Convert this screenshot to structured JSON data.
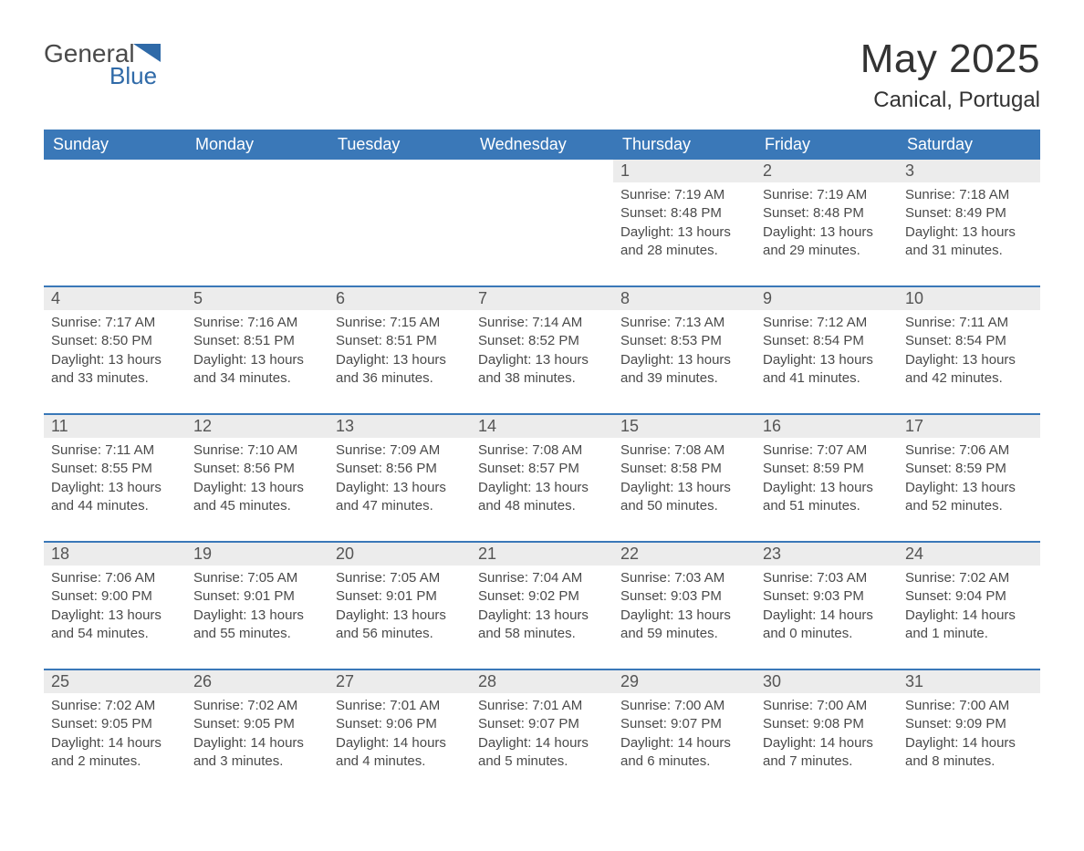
{
  "logo": {
    "text1": "General",
    "text2": "Blue"
  },
  "header": {
    "title": "May 2025",
    "location": "Canical, Portugal"
  },
  "colors": {
    "header_bg": "#3a78b8",
    "header_text": "#ffffff",
    "day_num_bg": "#ececec",
    "day_num_text": "#555555",
    "body_text": "#4a4a4a",
    "border": "#3a78b8",
    "logo_gray": "#4a4a4a",
    "logo_blue": "#2f6aa8"
  },
  "weekdays": [
    "Sunday",
    "Monday",
    "Tuesday",
    "Wednesday",
    "Thursday",
    "Friday",
    "Saturday"
  ],
  "weeks": [
    [
      {
        "empty": true
      },
      {
        "empty": true
      },
      {
        "empty": true
      },
      {
        "empty": true
      },
      {
        "day": "1",
        "sunrise": "Sunrise: 7:19 AM",
        "sunset": "Sunset: 8:48 PM",
        "daylight1": "Daylight: 13 hours",
        "daylight2": "and 28 minutes."
      },
      {
        "day": "2",
        "sunrise": "Sunrise: 7:19 AM",
        "sunset": "Sunset: 8:48 PM",
        "daylight1": "Daylight: 13 hours",
        "daylight2": "and 29 minutes."
      },
      {
        "day": "3",
        "sunrise": "Sunrise: 7:18 AM",
        "sunset": "Sunset: 8:49 PM",
        "daylight1": "Daylight: 13 hours",
        "daylight2": "and 31 minutes."
      }
    ],
    [
      {
        "day": "4",
        "sunrise": "Sunrise: 7:17 AM",
        "sunset": "Sunset: 8:50 PM",
        "daylight1": "Daylight: 13 hours",
        "daylight2": "and 33 minutes."
      },
      {
        "day": "5",
        "sunrise": "Sunrise: 7:16 AM",
        "sunset": "Sunset: 8:51 PM",
        "daylight1": "Daylight: 13 hours",
        "daylight2": "and 34 minutes."
      },
      {
        "day": "6",
        "sunrise": "Sunrise: 7:15 AM",
        "sunset": "Sunset: 8:51 PM",
        "daylight1": "Daylight: 13 hours",
        "daylight2": "and 36 minutes."
      },
      {
        "day": "7",
        "sunrise": "Sunrise: 7:14 AM",
        "sunset": "Sunset: 8:52 PM",
        "daylight1": "Daylight: 13 hours",
        "daylight2": "and 38 minutes."
      },
      {
        "day": "8",
        "sunrise": "Sunrise: 7:13 AM",
        "sunset": "Sunset: 8:53 PM",
        "daylight1": "Daylight: 13 hours",
        "daylight2": "and 39 minutes."
      },
      {
        "day": "9",
        "sunrise": "Sunrise: 7:12 AM",
        "sunset": "Sunset: 8:54 PM",
        "daylight1": "Daylight: 13 hours",
        "daylight2": "and 41 minutes."
      },
      {
        "day": "10",
        "sunrise": "Sunrise: 7:11 AM",
        "sunset": "Sunset: 8:54 PM",
        "daylight1": "Daylight: 13 hours",
        "daylight2": "and 42 minutes."
      }
    ],
    [
      {
        "day": "11",
        "sunrise": "Sunrise: 7:11 AM",
        "sunset": "Sunset: 8:55 PM",
        "daylight1": "Daylight: 13 hours",
        "daylight2": "and 44 minutes."
      },
      {
        "day": "12",
        "sunrise": "Sunrise: 7:10 AM",
        "sunset": "Sunset: 8:56 PM",
        "daylight1": "Daylight: 13 hours",
        "daylight2": "and 45 minutes."
      },
      {
        "day": "13",
        "sunrise": "Sunrise: 7:09 AM",
        "sunset": "Sunset: 8:56 PM",
        "daylight1": "Daylight: 13 hours",
        "daylight2": "and 47 minutes."
      },
      {
        "day": "14",
        "sunrise": "Sunrise: 7:08 AM",
        "sunset": "Sunset: 8:57 PM",
        "daylight1": "Daylight: 13 hours",
        "daylight2": "and 48 minutes."
      },
      {
        "day": "15",
        "sunrise": "Sunrise: 7:08 AM",
        "sunset": "Sunset: 8:58 PM",
        "daylight1": "Daylight: 13 hours",
        "daylight2": "and 50 minutes."
      },
      {
        "day": "16",
        "sunrise": "Sunrise: 7:07 AM",
        "sunset": "Sunset: 8:59 PM",
        "daylight1": "Daylight: 13 hours",
        "daylight2": "and 51 minutes."
      },
      {
        "day": "17",
        "sunrise": "Sunrise: 7:06 AM",
        "sunset": "Sunset: 8:59 PM",
        "daylight1": "Daylight: 13 hours",
        "daylight2": "and 52 minutes."
      }
    ],
    [
      {
        "day": "18",
        "sunrise": "Sunrise: 7:06 AM",
        "sunset": "Sunset: 9:00 PM",
        "daylight1": "Daylight: 13 hours",
        "daylight2": "and 54 minutes."
      },
      {
        "day": "19",
        "sunrise": "Sunrise: 7:05 AM",
        "sunset": "Sunset: 9:01 PM",
        "daylight1": "Daylight: 13 hours",
        "daylight2": "and 55 minutes."
      },
      {
        "day": "20",
        "sunrise": "Sunrise: 7:05 AM",
        "sunset": "Sunset: 9:01 PM",
        "daylight1": "Daylight: 13 hours",
        "daylight2": "and 56 minutes."
      },
      {
        "day": "21",
        "sunrise": "Sunrise: 7:04 AM",
        "sunset": "Sunset: 9:02 PM",
        "daylight1": "Daylight: 13 hours",
        "daylight2": "and 58 minutes."
      },
      {
        "day": "22",
        "sunrise": "Sunrise: 7:03 AM",
        "sunset": "Sunset: 9:03 PM",
        "daylight1": "Daylight: 13 hours",
        "daylight2": "and 59 minutes."
      },
      {
        "day": "23",
        "sunrise": "Sunrise: 7:03 AM",
        "sunset": "Sunset: 9:03 PM",
        "daylight1": "Daylight: 14 hours",
        "daylight2": "and 0 minutes."
      },
      {
        "day": "24",
        "sunrise": "Sunrise: 7:02 AM",
        "sunset": "Sunset: 9:04 PM",
        "daylight1": "Daylight: 14 hours",
        "daylight2": "and 1 minute."
      }
    ],
    [
      {
        "day": "25",
        "sunrise": "Sunrise: 7:02 AM",
        "sunset": "Sunset: 9:05 PM",
        "daylight1": "Daylight: 14 hours",
        "daylight2": "and 2 minutes."
      },
      {
        "day": "26",
        "sunrise": "Sunrise: 7:02 AM",
        "sunset": "Sunset: 9:05 PM",
        "daylight1": "Daylight: 14 hours",
        "daylight2": "and 3 minutes."
      },
      {
        "day": "27",
        "sunrise": "Sunrise: 7:01 AM",
        "sunset": "Sunset: 9:06 PM",
        "daylight1": "Daylight: 14 hours",
        "daylight2": "and 4 minutes."
      },
      {
        "day": "28",
        "sunrise": "Sunrise: 7:01 AM",
        "sunset": "Sunset: 9:07 PM",
        "daylight1": "Daylight: 14 hours",
        "daylight2": "and 5 minutes."
      },
      {
        "day": "29",
        "sunrise": "Sunrise: 7:00 AM",
        "sunset": "Sunset: 9:07 PM",
        "daylight1": "Daylight: 14 hours",
        "daylight2": "and 6 minutes."
      },
      {
        "day": "30",
        "sunrise": "Sunrise: 7:00 AM",
        "sunset": "Sunset: 9:08 PM",
        "daylight1": "Daylight: 14 hours",
        "daylight2": "and 7 minutes."
      },
      {
        "day": "31",
        "sunrise": "Sunrise: 7:00 AM",
        "sunset": "Sunset: 9:09 PM",
        "daylight1": "Daylight: 14 hours",
        "daylight2": "and 8 minutes."
      }
    ]
  ]
}
